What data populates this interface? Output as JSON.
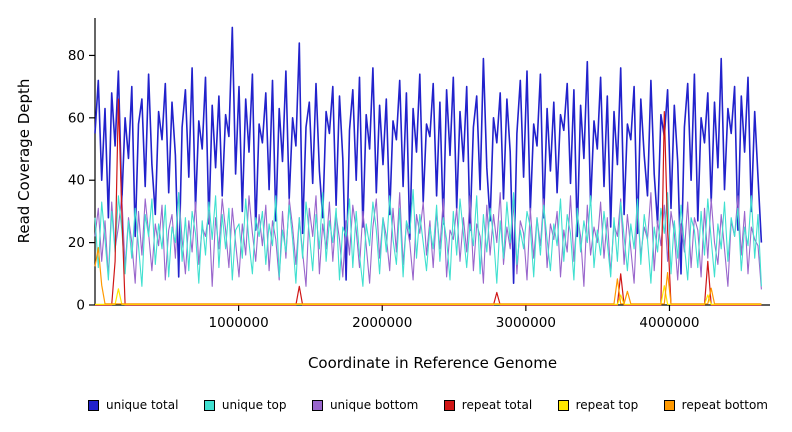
{
  "chart_data": {
    "type": "line",
    "title": "",
    "xlabel": "Coordinate in Reference Genome",
    "ylabel": "Read Coverage Depth",
    "xlim": [
      0,
      4700000
    ],
    "ylim": [
      0,
      92
    ],
    "xticks": [
      1000000,
      2000000,
      3000000,
      4000000
    ],
    "yticks": [
      0,
      20,
      40,
      60,
      80
    ],
    "grid": false,
    "legend_position": "bottom",
    "x_points": {
      "min": 0,
      "max": 4640000,
      "count": 200
    },
    "draw_order": [
      0,
      2,
      1,
      3,
      4,
      5
    ],
    "series": [
      {
        "name": "unique total",
        "color": "#2222CC",
        "values": [
          55,
          72,
          40,
          63,
          28,
          68,
          51,
          75,
          33,
          60,
          47,
          70,
          22,
          58,
          66,
          38,
          74,
          45,
          29,
          62,
          53,
          71,
          36,
          65,
          48,
          9,
          57,
          69,
          41,
          76,
          31,
          59,
          50,
          73,
          26,
          64,
          44,
          67,
          35,
          61,
          54,
          89,
          42,
          70,
          30,
          66,
          49,
          74,
          24,
          58,
          52,
          68,
          37,
          72,
          27,
          63,
          46,
          75,
          34,
          60,
          51,
          84,
          23,
          57,
          65,
          39,
          71,
          43,
          28,
          62,
          55,
          70,
          32,
          67,
          47,
          8,
          56,
          69,
          40,
          73,
          25,
          61,
          50,
          76,
          36,
          64,
          45,
          66,
          29,
          59,
          53,
          72,
          38,
          68,
          21,
          63,
          49,
          74,
          33,
          58,
          54,
          71,
          35,
          65,
          26,
          69,
          48,
          73,
          31,
          62,
          46,
          70,
          24,
          57,
          67,
          37,
          79,
          44,
          27,
          60,
          52,
          68,
          34,
          66,
          49,
          7,
          55,
          72,
          41,
          75,
          30,
          58,
          51,
          74,
          28,
          63,
          43,
          65,
          36,
          61,
          56,
          71,
          39,
          69,
          22,
          64,
          47,
          78,
          32,
          59,
          50,
          73,
          38,
          67,
          25,
          62,
          45,
          76,
          29,
          58,
          53,
          70,
          23,
          66,
          48,
          35,
          72,
          42,
          26,
          61,
          54,
          69,
          31,
          64,
          46,
          10,
          57,
          71,
          40,
          74,
          27,
          60,
          52,
          68,
          33,
          65,
          44,
          79,
          37,
          63,
          55,
          70,
          24,
          67,
          49,
          73,
          30,
          62,
          41,
          20
        ]
      },
      {
        "name": "unique top",
        "color": "#40E0D0",
        "values": [
          28,
          12,
          33,
          21,
          8,
          30,
          17,
          35,
          24,
          10,
          27,
          15,
          31,
          19,
          6,
          29,
          22,
          34,
          13,
          26,
          18,
          32,
          9,
          25,
          20,
          36,
          14,
          28,
          11,
          30,
          23,
          7,
          27,
          16,
          33,
          21,
          35,
          12,
          29,
          18,
          31,
          8,
          24,
          26,
          15,
          34,
          20,
          10,
          28,
          22,
          30,
          13,
          26,
          19,
          35,
          9,
          24,
          17,
          32,
          21,
          7,
          28,
          15,
          33,
          23,
          11,
          29,
          18,
          36,
          14,
          27,
          20,
          31,
          8,
          25,
          22,
          34,
          12,
          30,
          16,
          6,
          26,
          19,
          33,
          24,
          10,
          28,
          17,
          35,
          21,
          13,
          31,
          9,
          27,
          23,
          37,
          15,
          29,
          20,
          11,
          25,
          18,
          32,
          14,
          28,
          21,
          8,
          30,
          16,
          34,
          23,
          12,
          26,
          19,
          35,
          10,
          29,
          17,
          31,
          22,
          7,
          27,
          15,
          33,
          20,
          36,
          13,
          24,
          18,
          30,
          25,
          9,
          28,
          16,
          32,
          21,
          11,
          26,
          19,
          34,
          14,
          29,
          23,
          8,
          31,
          17,
          27,
          20,
          35,
          12,
          24,
          16,
          30,
          20,
          9,
          28,
          14,
          33,
          22,
          11,
          26,
          18,
          34,
          13,
          29,
          21,
          7,
          25,
          17,
          31,
          23,
          36,
          10,
          27,
          15,
          32,
          19,
          8,
          28,
          24,
          12,
          30,
          16,
          34,
          21,
          9,
          26,
          18,
          33,
          14,
          28,
          22,
          31,
          11,
          25,
          19,
          35,
          15,
          29,
          6
        ]
      },
      {
        "name": "unique bottom",
        "color": "#9966CC",
        "values": [
          22,
          31,
          14,
          27,
          9,
          33,
          18,
          25,
          35,
          12,
          28,
          20,
          7,
          30,
          16,
          34,
          23,
          11,
          26,
          19,
          32,
          8,
          24,
          29,
          15,
          36,
          21,
          10,
          27,
          17,
          33,
          13,
          25,
          22,
          30,
          6,
          28,
          18,
          34,
          24,
          12,
          31,
          20,
          9,
          26,
          16,
          35,
          23,
          14,
          29,
          19,
          32,
          11,
          27,
          21,
          8,
          30,
          15,
          34,
          25,
          13,
          28,
          17,
          6,
          31,
          22,
          35,
          10,
          26,
          18,
          33,
          14,
          29,
          21,
          9,
          27,
          16,
          32,
          24,
          12,
          30,
          19,
          7,
          25,
          34,
          15,
          28,
          22,
          11,
          31,
          17,
          36,
          13,
          26,
          20,
          8,
          29,
          23,
          33,
          16,
          27,
          12,
          30,
          18,
          34,
          9,
          24,
          21,
          31,
          14,
          28,
          17,
          35,
          11,
          26,
          22,
          7,
          32,
          16,
          29,
          20,
          36,
          13,
          25,
          18,
          33,
          10,
          27,
          23,
          8,
          31,
          15,
          28,
          19,
          34,
          12,
          26,
          21,
          30,
          9,
          24,
          17,
          35,
          14,
          29,
          22,
          6,
          32,
          16,
          25,
          20,
          33,
          15,
          28,
          10,
          26,
          22,
          34,
          13,
          29,
          18,
          7,
          31,
          16,
          25,
          21,
          36,
          11,
          27,
          19,
          32,
          14,
          30,
          23,
          8,
          26,
          17,
          33,
          12,
          28,
          24,
          9,
          31,
          15,
          34,
          20,
          13,
          29,
          18,
          6,
          27,
          22,
          35,
          16,
          30,
          10,
          25,
          21,
          19,
          5
        ]
      },
      {
        "name": "repeat total",
        "color": "#D01616",
        "values_sparse": {
          "length": 200,
          "default": 0,
          "spikes": {
            "6": 14,
            "7": 66,
            "8": 30,
            "61": 6,
            "120": 4,
            "157": 10,
            "170": 62,
            "171": 24,
            "183": 14
          }
        }
      },
      {
        "name": "repeat top",
        "color": "#FFE800",
        "values_sparse": {
          "length": 200,
          "default": 0,
          "spikes": {
            "7": 5,
            "157": 3,
            "170": 6,
            "183": 3
          }
        }
      },
      {
        "name": "repeat bottom",
        "color": "#FF9900",
        "values_sparse": {
          "length": 200,
          "default": 0,
          "spikes": {
            "0": 12,
            "1": 18,
            "2": 6,
            "156": 8,
            "159": 4,
            "171": 10,
            "184": 5
          }
        }
      }
    ]
  }
}
